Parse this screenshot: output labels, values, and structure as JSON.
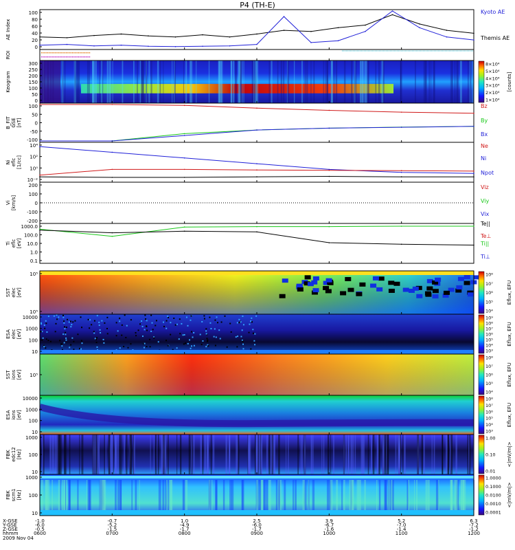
{
  "title": "P4 (TH-E)",
  "colors": {
    "black": "#000000",
    "blue": "#1f1fd8",
    "red": "#d01818",
    "green": "#18c818",
    "cyan": "#18b8d0",
    "magenta": "#c018c0",
    "orange": "#e07010"
  },
  "panels": [
    {
      "id": "ae",
      "type": "line",
      "ylabel": [
        "AE Index"
      ],
      "yticks": [
        "100",
        "80",
        "60",
        "40",
        "20",
        "0"
      ],
      "legend": [
        {
          "label": "Kyoto AE",
          "color": "#1f1fd8"
        },
        {
          "label": "Themis AE",
          "color": "#000000"
        }
      ]
    },
    {
      "id": "roi",
      "type": "flags",
      "ylabel": [
        "ROI"
      ],
      "yticks": []
    },
    {
      "id": "keogram",
      "type": "spectrogram",
      "ylabel": [
        "Keogram"
      ],
      "yticks": [
        "300",
        "250",
        "200",
        "150",
        "100",
        "50",
        "0"
      ],
      "colorbar": {
        "ticks": [
          "8×10⁴",
          "5×10⁴",
          "4×10⁴",
          "3×10⁴",
          "2×10⁴",
          "1×10⁴"
        ],
        "label": "[counts]"
      }
    },
    {
      "id": "bfield",
      "type": "line",
      "ylabel": [
        "B_FIT",
        "GSE",
        "[nT]"
      ],
      "yticks": [
        "100",
        "50",
        "0",
        "-50",
        "-100"
      ],
      "legend": [
        {
          "label": "Bz",
          "color": "#d01818"
        },
        {
          "label": "By",
          "color": "#18c818"
        },
        {
          "label": "Bx",
          "color": "#1f1fd8"
        }
      ]
    },
    {
      "id": "density",
      "type": "line",
      "ylabel": [
        "Ni",
        "eflc",
        "[1/cc]"
      ],
      "yticks": [
        "10⁴",
        "10²",
        "10⁰",
        "10⁻²"
      ],
      "legend": [
        {
          "label": "Ne",
          "color": "#d01818"
        },
        {
          "label": "Ni",
          "color": "#1f1fd8"
        },
        {
          "label": "Npot",
          "color": "#1f1fd8"
        }
      ]
    },
    {
      "id": "velocity",
      "type": "line",
      "ylabel": [
        "Vi",
        "[km/s]"
      ],
      "yticks": [
        "200",
        "100",
        "0",
        "-100",
        "-200"
      ],
      "legend": [
        {
          "label": "Viz",
          "color": "#d01818"
        },
        {
          "label": "Viy",
          "color": "#18c818"
        },
        {
          "label": "Vix",
          "color": "#1f1fd8"
        }
      ]
    },
    {
      "id": "temperature",
      "type": "line",
      "ylabel": [
        "Ti",
        "eflc",
        "[eV]"
      ],
      "yticks": [
        "1000.0",
        "100.0",
        "10.0",
        "1.0",
        "0.1"
      ],
      "legend": [
        {
          "label": "Te||",
          "color": "#000000"
        },
        {
          "label": "Te⊥",
          "color": "#d01818"
        },
        {
          "label": "Ti||",
          "color": "#18c818"
        },
        {
          "label": "Ti⊥",
          "color": "#1f1fd8"
        }
      ]
    },
    {
      "id": "sst_e",
      "type": "spectrogram",
      "ylabel": [
        "SST",
        "elec",
        "[eV]"
      ],
      "yticks": [
        "10⁵",
        "10⁵"
      ],
      "colorbar": {
        "ticks": [
          "10⁸",
          "10⁷",
          "10⁶",
          "10⁵",
          "10⁴"
        ],
        "label": "Eflux, EFU"
      }
    },
    {
      "id": "esa_e",
      "type": "spectrogram",
      "ylabel": [
        "ESA",
        "elec",
        "[eV]"
      ],
      "yticks": [
        "10000",
        "1000",
        "100",
        "10"
      ],
      "colorbar": {
        "ticks": [
          "10⁹",
          "10⁸",
          "10⁷",
          "10⁶",
          "10⁵",
          "10⁴",
          "10³"
        ],
        "label": "Eflux, EFU"
      }
    },
    {
      "id": "sst_i",
      "type": "spectrogram",
      "ylabel": [
        "SST",
        "ions",
        "[eV]"
      ],
      "yticks": [
        "10⁵"
      ],
      "colorbar": {
        "ticks": [
          "10⁸",
          "10⁷",
          "10⁶",
          "10⁵",
          "10⁴"
        ],
        "label": "Eflux, EFU"
      }
    },
    {
      "id": "esa_i",
      "type": "spectrogram",
      "ylabel": [
        "ESA",
        "ions",
        "[eV]"
      ],
      "yticks": [
        "10000",
        "1000",
        "100",
        "10"
      ],
      "colorbar": {
        "ticks": [
          "10⁸",
          "10⁷",
          "10⁶",
          "10⁵",
          "10⁴",
          "10³"
        ],
        "label": "Eflux, EFU"
      }
    },
    {
      "id": "fbk_e",
      "type": "spectrogram",
      "ylabel": [
        "FBK",
        "edc12",
        "[Hz]"
      ],
      "yticks": [
        "1000",
        "100",
        "10"
      ],
      "colorbar": {
        "ticks": [
          "1.00",
          "0.10",
          "0.01"
        ],
        "label": "<|mV/m|>"
      }
    },
    {
      "id": "fbk_b",
      "type": "spectrogram",
      "ylabel": [
        "FBK",
        "scm1",
        "[Hz]"
      ],
      "yticks": [
        "1000",
        "100",
        "10"
      ],
      "colorbar": {
        "ticks": [
          "1.0000",
          "0.1000",
          "0.0100",
          "0.0010",
          "0.0001"
        ],
        "label": "<|mV/m|>"
      }
    }
  ],
  "x_axis": {
    "row_labels": [
      "X-GSE",
      "Y-GSE",
      "Z-GSE",
      "hhmm",
      "2009 Nov 04"
    ],
    "ticks": [
      {
        "x": "-1.0",
        "y": "-6.0",
        "z": "-0.5",
        "t": "0600"
      },
      {
        "x": "-0.7",
        "y": "-5.2",
        "z": "-1.5",
        "t": "0700"
      },
      {
        "x": "1.0",
        "y": "-4.9",
        "z": "-1.7",
        "t": "0800"
      },
      {
        "x": "2.5",
        "y": "-6.0",
        "z": "-1.7",
        "t": "0900"
      },
      {
        "x": "3.9",
        "y": "-6.7",
        "z": "-1.6",
        "t": "1000"
      },
      {
        "x": "5.2",
        "y": "-7.0",
        "z": "-1.4",
        "t": "1100"
      },
      {
        "x": "6.3",
        "y": "-7.2",
        "z": "-1.2",
        "t": "1200"
      }
    ]
  },
  "chart_data": [
    {
      "type": "line",
      "title": "P4 (TH-E)",
      "ylabel": "AE Index",
      "ylim": [
        0,
        100
      ],
      "x": [
        "0600",
        "0630",
        "0700",
        "0730",
        "0800",
        "0830",
        "0900",
        "0930",
        "1000",
        "1015",
        "1030",
        "1045",
        "1100",
        "1115",
        "1130",
        "1145",
        "1200"
      ],
      "series": [
        {
          "name": "Themis AE",
          "values": [
            30,
            28,
            34,
            38,
            33,
            30,
            36,
            30,
            38,
            48,
            45,
            55,
            62,
            90,
            65,
            48,
            40
          ]
        },
        {
          "name": "Kyoto AE",
          "values": [
            8,
            10,
            6,
            8,
            5,
            4,
            5,
            6,
            10,
            85,
            15,
            20,
            45,
            100,
            55,
            30,
            22
          ]
        }
      ]
    },
    {
      "type": "line",
      "ylabel": "B_FIT GSE [nT]",
      "ylim": [
        -100,
        100
      ],
      "x": [
        "0600",
        "0700",
        "0800",
        "0900",
        "1000",
        "1100",
        "1200"
      ],
      "series": [
        {
          "name": "Bz",
          "values": [
            100,
            100,
            95,
            80,
            68,
            58,
            52
          ]
        },
        {
          "name": "By",
          "values": [
            -100,
            -100,
            -60,
            -40,
            -30,
            -24,
            -20
          ]
        },
        {
          "name": "Bx",
          "values": [
            -100,
            -100,
            -70,
            -40,
            -30,
            -25,
            -20
          ]
        }
      ]
    },
    {
      "type": "line",
      "ylabel": "Ni eflc [1/cc]",
      "x": [
        "0600",
        "0700",
        "0800",
        "0900",
        "1000",
        "1100",
        "1200"
      ],
      "series": [
        {
          "name": "Ni",
          "values": [
            10000,
            1000,
            100,
            10,
            1,
            0.3,
            0.2
          ]
        },
        {
          "name": "Ne",
          "values": [
            0.1,
            1,
            1,
            0.8,
            0.7,
            0.6,
            0.5
          ]
        },
        {
          "name": "Npot",
          "values": [
            0.05,
            0.04,
            0.04,
            0.05,
            0.06,
            0.05,
            0.05
          ]
        }
      ]
    },
    {
      "type": "line",
      "ylabel": "Ti eflc [eV]",
      "x": [
        "0600",
        "0700",
        "0800",
        "0900",
        "1000",
        "1100",
        "1200"
      ],
      "series": [
        {
          "name": "Ti||",
          "values": [
            500,
            80,
            900,
            1000,
            1000,
            1100,
            1100
          ]
        },
        {
          "name": "Te||",
          "values": [
            400,
            200,
            300,
            250,
            15,
            10,
            8
          ]
        }
      ]
    }
  ]
}
